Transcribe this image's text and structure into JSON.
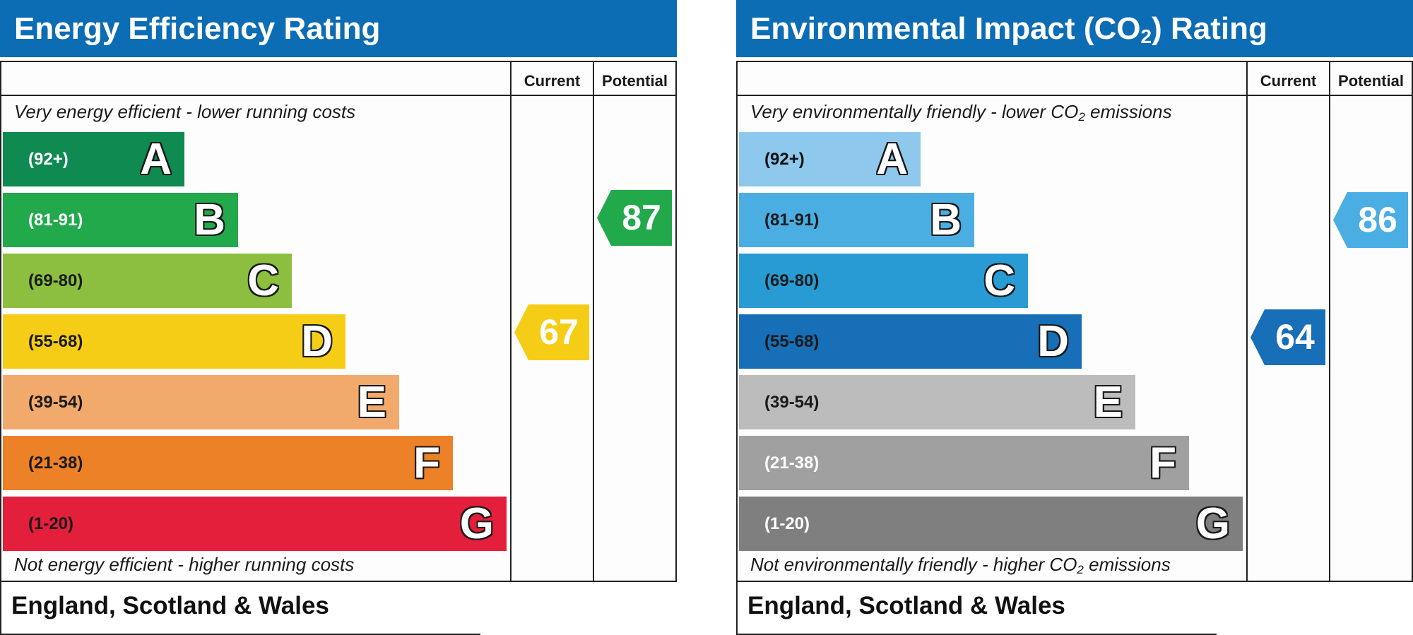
{
  "chart_data": [
    {
      "type": "bar",
      "title": "Energy Efficiency Rating",
      "columns": [
        "Current",
        "Potential"
      ],
      "top_caption": "Very energy efficient - lower running costs",
      "bottom_caption": "Not energy efficient - higher running costs",
      "region": "England, Scotland & Wales",
      "bands": [
        {
          "letter": "A",
          "range": "(92+)",
          "color": "#0f8a50",
          "text_color": "#ffffff",
          "min": 92,
          "max": 100
        },
        {
          "letter": "B",
          "range": "(81-91)",
          "color": "#22a94c",
          "text_color": "#ffffff",
          "min": 81,
          "max": 91
        },
        {
          "letter": "C",
          "range": "(69-80)",
          "color": "#8cbf3f",
          "text_color": "#1a1a1a",
          "min": 69,
          "max": 80
        },
        {
          "letter": "D",
          "range": "(55-68)",
          "color": "#f6cd16",
          "text_color": "#1a1a1a",
          "min": 55,
          "max": 68
        },
        {
          "letter": "E",
          "range": "(39-54)",
          "color": "#f2aa6c",
          "text_color": "#1a1a1a",
          "min": 39,
          "max": 54
        },
        {
          "letter": "F",
          "range": "(21-38)",
          "color": "#ec8127",
          "text_color": "#1a1a1a",
          "min": 21,
          "max": 38
        },
        {
          "letter": "G",
          "range": "(1-20)",
          "color": "#e31f3c",
          "text_color": "#1a1a1a",
          "min": 1,
          "max": 20
        }
      ],
      "current": {
        "value": 67,
        "band": "D",
        "color": "#f6cd16"
      },
      "potential": {
        "value": 87,
        "band": "B",
        "color": "#22a94c"
      }
    },
    {
      "type": "bar",
      "title_pre": "Environmental Impact (CO",
      "title_sub": "2",
      "title_post": ") Rating",
      "columns": [
        "Current",
        "Potential"
      ],
      "top_caption_pre": "Very environmentally friendly - lower CO",
      "top_caption_sub": "2",
      "top_caption_post": " emissions",
      "bottom_caption_pre": "Not environmentally friendly - higher CO",
      "bottom_caption_sub": "2",
      "bottom_caption_post": " emissions",
      "region": "England, Scotland & Wales",
      "bands": [
        {
          "letter": "A",
          "range": "(92+)",
          "color": "#8ec8ec",
          "text_color": "#111111",
          "min": 92,
          "max": 100
        },
        {
          "letter": "B",
          "range": "(81-91)",
          "color": "#4aaee2",
          "text_color": "#1a1a1a",
          "min": 81,
          "max": 91
        },
        {
          "letter": "C",
          "range": "(69-80)",
          "color": "#289bd4",
          "text_color": "#1a1a1a",
          "min": 69,
          "max": 80
        },
        {
          "letter": "D",
          "range": "(55-68)",
          "color": "#176fb8",
          "text_color": "#1a1a1a",
          "min": 55,
          "max": 68
        },
        {
          "letter": "E",
          "range": "(39-54)",
          "color": "#bcbcbc",
          "text_color": "#1a1a1a",
          "min": 39,
          "max": 54
        },
        {
          "letter": "F",
          "range": "(21-38)",
          "color": "#a0a0a0",
          "text_color": "#ffffff",
          "min": 21,
          "max": 38
        },
        {
          "letter": "G",
          "range": "(1-20)",
          "color": "#7f7f7f",
          "text_color": "#ffffff",
          "min": 1,
          "max": 20
        }
      ],
      "current": {
        "value": 64,
        "band": "D",
        "color": "#176fb8"
      },
      "potential": {
        "value": 86,
        "band": "B",
        "color": "#4aaee2"
      }
    }
  ]
}
